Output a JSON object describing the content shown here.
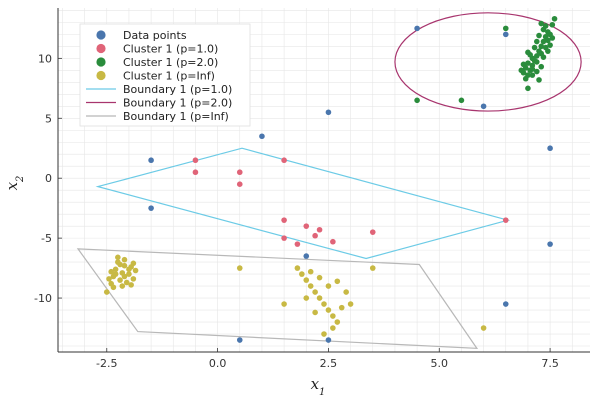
{
  "chart_data": {
    "type": "scatter",
    "xlabel": "x",
    "xlabel_sub": "1",
    "ylabel": "x",
    "ylabel_sub": "2",
    "xlim": [
      -3.6,
      8.4
    ],
    "ylim": [
      -14.5,
      14.2
    ],
    "xticks": [
      -2.5,
      0.0,
      2.5,
      5.0,
      7.5
    ],
    "xtick_labels": [
      "-2.5",
      "0.0",
      "2.5",
      "5.0",
      "7.5"
    ],
    "yticks": [
      -10,
      -5,
      0,
      5,
      10
    ],
    "ytick_labels": [
      "-10",
      "-5",
      "0",
      "5",
      "10"
    ],
    "grid": true,
    "legend_position": "top-left",
    "colors": {
      "data_points": "#4a76ad",
      "cluster_p1": "#e06478",
      "cluster_p2": "#2a8c3c",
      "cluster_pinf": "#c8b944",
      "boundary_p1": "#6ccbe6",
      "boundary_p2": "#a8356e",
      "boundary_pinf": "#b8b8b8"
    },
    "legend": [
      {
        "label": "Data points",
        "kind": "marker",
        "color": "#4a76ad"
      },
      {
        "label": "Cluster 1 (p=1.0)",
        "kind": "marker",
        "color": "#e06478"
      },
      {
        "label": "Cluster 1 (p=2.0)",
        "kind": "marker",
        "color": "#2a8c3c"
      },
      {
        "label": "Cluster 1 (p=Inf)",
        "kind": "marker",
        "color": "#c8b944"
      },
      {
        "label": "Boundary 1 (p=1.0)",
        "kind": "line",
        "color": "#6ccbe6"
      },
      {
        "label": "Boundary 1 (p=2.0)",
        "kind": "line",
        "color": "#a8356e"
      },
      {
        "label": "Boundary 1 (p=Inf)",
        "kind": "line",
        "color": "#b8b8b8"
      }
    ],
    "series": [
      {
        "name": "Data points",
        "color": "#4a76ad",
        "points": [
          [
            -1.5,
            1.5
          ],
          [
            -1.5,
            -2.5
          ],
          [
            0.5,
            9.5
          ],
          [
            2.5,
            5.5
          ],
          [
            4.5,
            12.5
          ],
          [
            6.0,
            6.0
          ],
          [
            6.5,
            12.0
          ],
          [
            7.5,
            2.5
          ],
          [
            7.5,
            -5.5
          ],
          [
            6.5,
            -10.5
          ],
          [
            0.5,
            -13.5
          ],
          [
            2.5,
            -13.5
          ],
          [
            1.0,
            3.5
          ],
          [
            2.0,
            -6.5
          ]
        ]
      },
      {
        "name": "Cluster 1 (p=1.0)",
        "color": "#e06478",
        "points": [
          [
            -0.5,
            1.5
          ],
          [
            -0.5,
            0.5
          ],
          [
            0.5,
            0.5
          ],
          [
            0.5,
            -0.5
          ],
          [
            1.5,
            1.5
          ],
          [
            1.5,
            -3.5
          ],
          [
            1.5,
            -5.0
          ],
          [
            1.8,
            -5.5
          ],
          [
            2.0,
            -4.0
          ],
          [
            2.2,
            -4.8
          ],
          [
            2.3,
            -4.3
          ],
          [
            2.6,
            -5.3
          ],
          [
            3.5,
            -4.5
          ],
          [
            6.5,
            -3.5
          ]
        ]
      },
      {
        "name": "Cluster 1 (p=2.0)",
        "color": "#2a8c3c",
        "points": [
          [
            4.5,
            6.5
          ],
          [
            5.5,
            6.5
          ],
          [
            6.5,
            12.5
          ],
          [
            7.0,
            7.5
          ],
          [
            7.6,
            13.3
          ],
          [
            7.55,
            12.8
          ],
          [
            7.45,
            12.2
          ],
          [
            7.4,
            11.8
          ],
          [
            7.35,
            11.4
          ],
          [
            7.3,
            11.0
          ],
          [
            7.25,
            10.6
          ],
          [
            7.2,
            10.2
          ],
          [
            7.15,
            9.8
          ],
          [
            7.1,
            9.4
          ],
          [
            7.05,
            9.0
          ],
          [
            7.0,
            8.6
          ],
          [
            6.95,
            8.3
          ],
          [
            7.5,
            12.0
          ],
          [
            7.4,
            10.9
          ],
          [
            7.3,
            10.4
          ],
          [
            7.2,
            9.7
          ],
          [
            7.1,
            9.1
          ],
          [
            6.9,
            8.8
          ],
          [
            7.35,
            12.4
          ],
          [
            7.45,
            11.5
          ],
          [
            7.1,
            10.0
          ],
          [
            7.0,
            9.6
          ],
          [
            6.95,
            9.2
          ],
          [
            7.25,
            11.9
          ],
          [
            7.15,
            10.9
          ],
          [
            7.05,
            10.3
          ],
          [
            7.3,
            9.3
          ],
          [
            7.2,
            8.9
          ],
          [
            6.9,
            9.5
          ],
          [
            7.4,
            12.7
          ],
          [
            7.5,
            11.1
          ],
          [
            7.35,
            10.1
          ],
          [
            7.0,
            10.5
          ],
          [
            7.2,
            11.4
          ],
          [
            7.1,
            8.6
          ],
          [
            7.25,
            8.2
          ],
          [
            7.55,
            11.7
          ],
          [
            6.85,
            9.0
          ],
          [
            7.3,
            12.9
          ],
          [
            7.45,
            10.6
          ]
        ]
      },
      {
        "name": "Cluster 1 (p=Inf)",
        "color": "#c8b944",
        "points": [
          [
            -2.5,
            -9.5
          ],
          [
            -2.4,
            -8.8
          ],
          [
            -2.35,
            -8.2
          ],
          [
            -2.3,
            -7.6
          ],
          [
            -2.25,
            -7.0
          ],
          [
            -2.2,
            -8.5
          ],
          [
            -2.15,
            -7.9
          ],
          [
            -2.1,
            -7.3
          ],
          [
            -2.05,
            -8.7
          ],
          [
            -2.0,
            -8.0
          ],
          [
            -1.95,
            -7.4
          ],
          [
            -1.9,
            -8.4
          ],
          [
            -1.85,
            -7.7
          ],
          [
            -2.3,
            -8.0
          ],
          [
            -2.2,
            -7.2
          ],
          [
            -2.1,
            -8.2
          ],
          [
            -2.0,
            -7.6
          ],
          [
            -2.45,
            -8.4
          ],
          [
            -2.35,
            -9.1
          ],
          [
            -1.95,
            -8.9
          ],
          [
            -2.25,
            -6.6
          ],
          [
            -2.1,
            -6.8
          ],
          [
            -1.9,
            -7.1
          ],
          [
            -2.4,
            -7.8
          ],
          [
            -2.15,
            -9.0
          ],
          [
            0.5,
            -7.5
          ],
          [
            3.5,
            -7.5
          ],
          [
            6.0,
            -12.5
          ],
          [
            1.5,
            -10.5
          ],
          [
            1.8,
            -7.5
          ],
          [
            1.9,
            -8.0
          ],
          [
            2.0,
            -8.5
          ],
          [
            2.1,
            -9.0
          ],
          [
            2.2,
            -9.5
          ],
          [
            2.3,
            -10.0
          ],
          [
            2.4,
            -10.5
          ],
          [
            2.5,
            -11.0
          ],
          [
            2.6,
            -11.5
          ],
          [
            2.7,
            -12.0
          ],
          [
            2.0,
            -10.0
          ],
          [
            2.3,
            -8.3
          ],
          [
            2.5,
            -9.0
          ],
          [
            2.8,
            -10.8
          ],
          [
            2.2,
            -11.2
          ],
          [
            2.6,
            -12.5
          ],
          [
            2.4,
            -13.0
          ],
          [
            2.9,
            -9.5
          ],
          [
            3.0,
            -10.5
          ],
          [
            2.1,
            -7.8
          ],
          [
            2.7,
            -8.6
          ]
        ]
      }
    ],
    "boundaries": [
      {
        "name": "Boundary 1 (p=1.0)",
        "color": "#6ccbe6",
        "closed": true,
        "vertices": [
          [
            -2.7,
            -0.7
          ],
          [
            0.55,
            2.5
          ],
          [
            6.55,
            -3.5
          ],
          [
            3.35,
            -6.7
          ]
        ]
      },
      {
        "name": "Boundary 1 (p=2.0)",
        "color": "#a8356e",
        "closed": true,
        "ellipse": {
          "cx": 6.1,
          "cy": 9.7,
          "rx": 2.1,
          "ry": 4.1
        }
      },
      {
        "name": "Boundary 1 (p=Inf)",
        "color": "#b8b8b8",
        "closed": true,
        "vertices": [
          [
            -3.15,
            -5.9
          ],
          [
            4.55,
            -7.2
          ],
          [
            5.85,
            -14.2
          ],
          [
            -1.8,
            -12.8
          ]
        ]
      }
    ]
  }
}
